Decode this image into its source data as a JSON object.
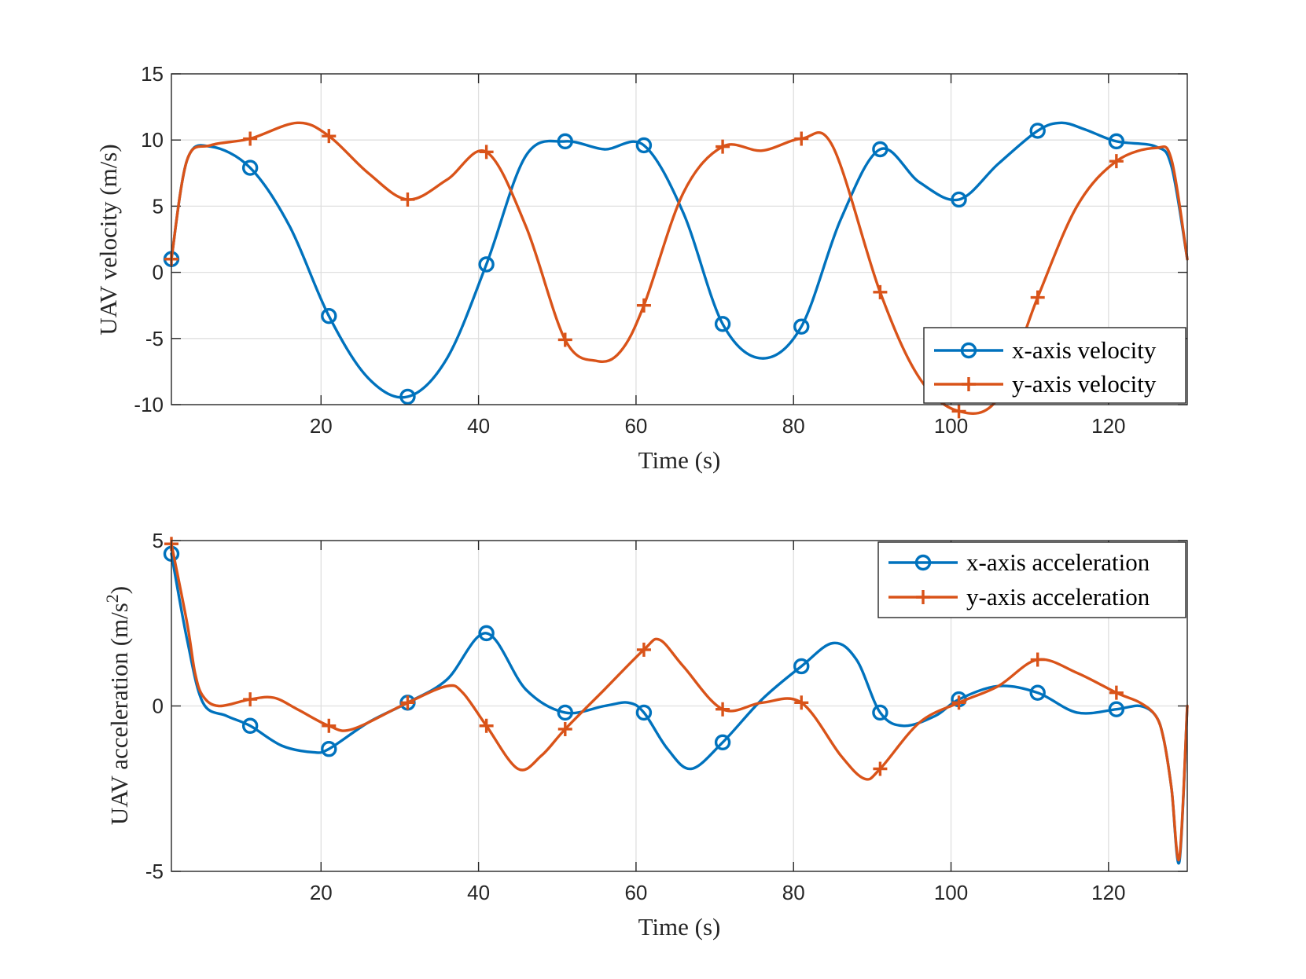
{
  "chart_data": [
    {
      "type": "line",
      "title": "",
      "xlabel": "Time (s)",
      "ylabel": "UAV velocity (m/s)",
      "xlim": [
        1,
        130
      ],
      "ylim": [
        -10,
        15
      ],
      "xticks": [
        20,
        40,
        60,
        80,
        100,
        120
      ],
      "yticks": [
        -10,
        -5,
        0,
        5,
        10,
        15
      ],
      "grid": true,
      "legend_position": "bottom-right",
      "series": [
        {
          "name": "x-axis velocity",
          "color": "#0072BD",
          "marker": "circle",
          "x": [
            1,
            3,
            6,
            11,
            16,
            21,
            26,
            31,
            36,
            41,
            46,
            51,
            56,
            61,
            66,
            71,
            76,
            81,
            86,
            91,
            96,
            101,
            106,
            111,
            114,
            117,
            121,
            126,
            128,
            130
          ],
          "y": [
            1,
            8.5,
            9.5,
            7.9,
            3.5,
            -3.3,
            -8.0,
            -9.4,
            -6.5,
            0.6,
            8.8,
            9.9,
            9.3,
            9.6,
            4.5,
            -3.9,
            -6.5,
            -4.1,
            4.0,
            9.3,
            6.8,
            5.5,
            8.2,
            10.7,
            11.3,
            10.8,
            9.9,
            9.5,
            8.0,
            1.0
          ],
          "marker_x": [
            1,
            11,
            21,
            31,
            41,
            51,
            61,
            71,
            81,
            91,
            101,
            111,
            121
          ]
        },
        {
          "name": "y-axis velocity",
          "color": "#D95319",
          "marker": "plus",
          "x": [
            1,
            3,
            6,
            11,
            17,
            21,
            26,
            31,
            36,
            41,
            46,
            51,
            55,
            58,
            61,
            66,
            71,
            76,
            81,
            85,
            91,
            96,
            101,
            106,
            111,
            116,
            121,
            126,
            128,
            130
          ],
          "y": [
            1,
            8.5,
            9.6,
            10.1,
            11.3,
            10.3,
            7.5,
            5.5,
            7.0,
            9.1,
            3.5,
            -5.1,
            -6.7,
            -6.0,
            -2.5,
            6.0,
            9.5,
            9.2,
            10.1,
            9.5,
            -1.5,
            -8.0,
            -10.5,
            -9.5,
            -1.9,
            5.0,
            8.4,
            9.4,
            8.5,
            1.0
          ],
          "marker_x": [
            1,
            11,
            21,
            31,
            41,
            51,
            61,
            71,
            81,
            91,
            101,
            111,
            121
          ]
        }
      ]
    },
    {
      "type": "line",
      "title": "",
      "xlabel": "Time (s)",
      "ylabel": "UAV acceleration (m/s",
      "ylabel_superscript": "2",
      "ylabel_suffix": ")",
      "xlim": [
        1,
        130
      ],
      "ylim": [
        -5,
        5
      ],
      "xticks": [
        20,
        40,
        60,
        80,
        100,
        120
      ],
      "yticks": [
        -5,
        0,
        5
      ],
      "grid": true,
      "legend_position": "top-right",
      "series": [
        {
          "name": "x-axis acceleration",
          "color": "#0072BD",
          "marker": "circle",
          "x": [
            1,
            3,
            5,
            8,
            11,
            15,
            19,
            21,
            26,
            31,
            36,
            41,
            46,
            51,
            56,
            59,
            61,
            64,
            67,
            71,
            76,
            81,
            85,
            88,
            91,
            94,
            98,
            101,
            106,
            111,
            116,
            121,
            124,
            126,
            127,
            128,
            129,
            130
          ],
          "y": [
            4.6,
            2.0,
            0.1,
            -0.3,
            -0.6,
            -1.2,
            -1.4,
            -1.3,
            -0.5,
            0.1,
            0.8,
            2.2,
            0.5,
            -0.2,
            -0.0,
            0.1,
            -0.2,
            -1.3,
            -1.9,
            -1.1,
            0.2,
            1.2,
            1.9,
            1.4,
            -0.2,
            -0.6,
            -0.3,
            0.2,
            0.6,
            0.4,
            -0.2,
            -0.1,
            -0.0,
            -0.3,
            -1.0,
            -2.5,
            -4.7,
            0.0
          ],
          "marker_x": [
            1,
            11,
            21,
            31,
            41,
            51,
            61,
            71,
            81,
            91,
            101,
            111,
            121
          ]
        },
        {
          "name": "y-axis acceleration",
          "color": "#D95319",
          "marker": "plus",
          "x": [
            1,
            3,
            4,
            5,
            7,
            11,
            14,
            17,
            21,
            24,
            31,
            36,
            38,
            41,
            45,
            48,
            51,
            56,
            61,
            63,
            66,
            71,
            76,
            81,
            86,
            89,
            91,
            96,
            101,
            106,
            111,
            116,
            121,
            124,
            126,
            127,
            128,
            129,
            130
          ],
          "y": [
            4.9,
            2.5,
            1.0,
            0.3,
            0.0,
            0.2,
            0.25,
            -0.1,
            -0.6,
            -0.7,
            0.1,
            0.6,
            0.4,
            -0.6,
            -1.9,
            -1.5,
            -0.7,
            0.5,
            1.7,
            2.0,
            1.2,
            -0.1,
            0.1,
            0.1,
            -1.5,
            -2.2,
            -1.9,
            -0.5,
            0.1,
            0.6,
            1.4,
            1.0,
            0.4,
            0.1,
            -0.3,
            -1.0,
            -2.5,
            -4.6,
            0.0
          ],
          "marker_x": [
            1,
            11,
            21,
            31,
            41,
            51,
            61,
            71,
            81,
            91,
            101,
            111,
            121
          ]
        }
      ]
    }
  ]
}
